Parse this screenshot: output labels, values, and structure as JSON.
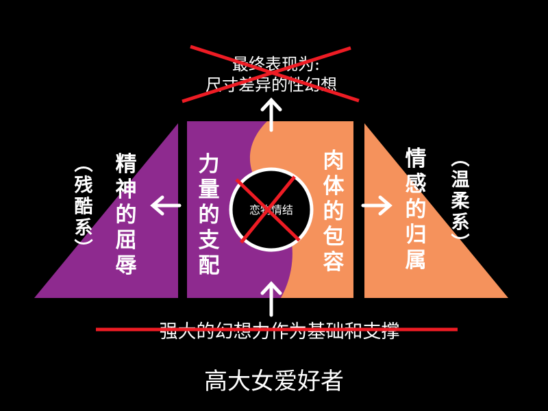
{
  "colors": {
    "background": "#000000",
    "purple": "#8e2a8f",
    "orange": "#f5925c",
    "cross": "#ee1c24",
    "white": "#ffffff"
  },
  "top_text": {
    "line1": "最终表现为:",
    "line2": "尺寸差异的性幻想"
  },
  "bottom_struck_text": "强大的幻想力作为基础和支撑",
  "bottom_title": "高大女爱好者",
  "center_label": "恋物情结",
  "left_outer": "（残酷系）",
  "left_inner": "精神的屈辱",
  "center_left": "力量的支配",
  "center_right": "肉体的包容",
  "right_inner": "情感的归属",
  "right_outer": "（温柔系）"
}
